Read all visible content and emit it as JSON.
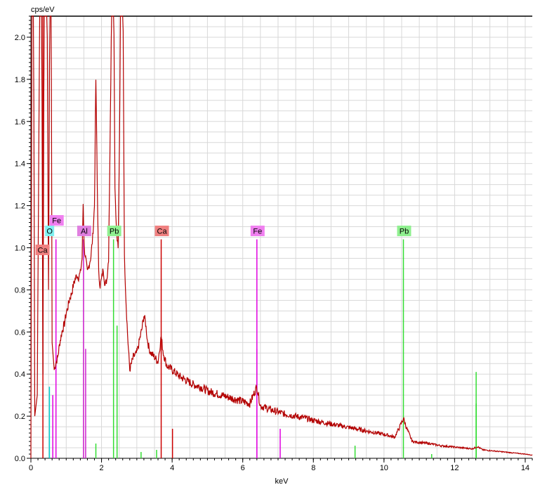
{
  "chart_data": {
    "type": "line",
    "title": "",
    "xlabel": "keV",
    "ylabel": "cps/eV",
    "xlim": [
      0,
      14.2
    ],
    "ylim": [
      0,
      2.1
    ],
    "x_ticks": [
      0,
      2,
      4,
      6,
      8,
      10,
      12,
      14
    ],
    "y_ticks": [
      0.0,
      0.2,
      0.4,
      0.6,
      0.8,
      1.0,
      1.2,
      1.4,
      1.6,
      1.8,
      2.0
    ],
    "x_tick_labels": [
      "0",
      "2",
      "4",
      "6",
      "8",
      "10",
      "12",
      "14"
    ],
    "y_tick_labels": [
      "0.0",
      "0.2",
      "0.4",
      "0.6",
      "0.8",
      "1.0",
      "1.2",
      "1.4",
      "1.6",
      "1.8",
      "2.0"
    ],
    "grid": true,
    "colors": {
      "spectrum": "#b30000",
      "Ca": "#cc0000",
      "O": "#00cccc",
      "Fe": "#e000e0",
      "Al": "#d020d0",
      "Pb": "#33dd33",
      "Ca_label_bg": "#f08080",
      "O_label_bg": "#80f0f0",
      "Fe_label_bg": "#f080f0",
      "Al_label_bg": "#e080e0",
      "Pb_label_bg": "#90f090"
    },
    "series": [
      {
        "name": "",
        "points": [
          [
            0.0,
            0
          ],
          [
            0.03,
            2.4
          ],
          [
            0.07,
            2.4
          ],
          [
            0.11,
            0.2
          ],
          [
            0.18,
            0.3
          ],
          [
            0.26,
            2.4
          ],
          [
            0.3,
            2.4
          ],
          [
            0.34,
            0.4
          ],
          [
            0.38,
            2.4
          ],
          [
            0.45,
            2.4
          ],
          [
            0.5,
            0.8
          ],
          [
            0.54,
            2.4
          ],
          [
            0.57,
            2.4
          ],
          [
            0.6,
            0.55
          ],
          [
            0.66,
            0.42
          ],
          [
            0.7,
            0.45
          ],
          [
            0.76,
            0.48
          ],
          [
            0.82,
            0.55
          ],
          [
            0.88,
            0.6
          ],
          [
            0.95,
            0.64
          ],
          [
            1.0,
            0.69
          ],
          [
            1.05,
            0.72
          ],
          [
            1.1,
            0.76
          ],
          [
            1.15,
            0.78
          ],
          [
            1.2,
            0.82
          ],
          [
            1.25,
            0.85
          ],
          [
            1.3,
            0.87
          ],
          [
            1.35,
            0.86
          ],
          [
            1.4,
            0.88
          ],
          [
            1.45,
            0.95
          ],
          [
            1.48,
            1.21
          ],
          [
            1.51,
            1.0
          ],
          [
            1.55,
            0.95
          ],
          [
            1.6,
            0.88
          ],
          [
            1.65,
            0.92
          ],
          [
            1.7,
            0.96
          ],
          [
            1.75,
            1.05
          ],
          [
            1.8,
            1.2
          ],
          [
            1.84,
            1.8
          ],
          [
            1.88,
            1.3
          ],
          [
            1.92,
            0.88
          ],
          [
            1.96,
            0.82
          ],
          [
            2.0,
            0.85
          ],
          [
            2.05,
            0.9
          ],
          [
            2.1,
            0.82
          ],
          [
            2.15,
            0.85
          ],
          [
            2.2,
            0.95
          ],
          [
            2.25,
            1.6
          ],
          [
            2.3,
            2.4
          ],
          [
            2.34,
            2.4
          ],
          [
            2.38,
            1.3
          ],
          [
            2.42,
            1.1
          ],
          [
            2.47,
            1.0
          ],
          [
            2.51,
            1.5
          ],
          [
            2.55,
            2.4
          ],
          [
            2.6,
            2.4
          ],
          [
            2.65,
            0.95
          ],
          [
            2.7,
            0.72
          ],
          [
            2.75,
            0.55
          ],
          [
            2.8,
            0.42
          ],
          [
            2.85,
            0.45
          ],
          [
            2.9,
            0.48
          ],
          [
            3.0,
            0.5
          ],
          [
            3.05,
            0.54
          ],
          [
            3.1,
            0.58
          ],
          [
            3.15,
            0.62
          ],
          [
            3.2,
            0.68
          ],
          [
            3.25,
            0.64
          ],
          [
            3.3,
            0.56
          ],
          [
            3.35,
            0.52
          ],
          [
            3.4,
            0.5
          ],
          [
            3.5,
            0.48
          ],
          [
            3.6,
            0.46
          ],
          [
            3.69,
            0.58
          ],
          [
            3.75,
            0.5
          ],
          [
            3.85,
            0.44
          ],
          [
            4.0,
            0.42
          ],
          [
            4.2,
            0.39
          ],
          [
            4.4,
            0.37
          ],
          [
            4.6,
            0.35
          ],
          [
            4.8,
            0.34
          ],
          [
            5.0,
            0.32
          ],
          [
            5.2,
            0.31
          ],
          [
            5.4,
            0.3
          ],
          [
            5.6,
            0.29
          ],
          [
            5.8,
            0.28
          ],
          [
            6.0,
            0.27
          ],
          [
            6.2,
            0.26
          ],
          [
            6.4,
            0.34
          ],
          [
            6.5,
            0.25
          ],
          [
            6.8,
            0.23
          ],
          [
            7.0,
            0.22
          ],
          [
            7.2,
            0.21
          ],
          [
            7.5,
            0.2
          ],
          [
            7.8,
            0.19
          ],
          [
            8.0,
            0.18
          ],
          [
            8.3,
            0.17
          ],
          [
            8.6,
            0.16
          ],
          [
            8.9,
            0.15
          ],
          [
            9.2,
            0.14
          ],
          [
            9.5,
            0.13
          ],
          [
            9.8,
            0.12
          ],
          [
            10.1,
            0.11
          ],
          [
            10.3,
            0.1
          ],
          [
            10.45,
            0.15
          ],
          [
            10.55,
            0.19
          ],
          [
            10.65,
            0.14
          ],
          [
            10.8,
            0.08
          ],
          [
            11.0,
            0.075
          ],
          [
            11.3,
            0.07
          ],
          [
            11.6,
            0.06
          ],
          [
            11.9,
            0.055
          ],
          [
            12.2,
            0.05
          ],
          [
            12.5,
            0.045
          ],
          [
            12.65,
            0.055
          ],
          [
            12.8,
            0.04
          ],
          [
            13.1,
            0.035
          ],
          [
            13.4,
            0.03
          ],
          [
            13.7,
            0.025
          ],
          [
            14.0,
            0.02
          ],
          [
            14.2,
            0.015
          ]
        ]
      }
    ],
    "element_lines": [
      {
        "element": "Ca",
        "x": 0.34,
        "height": 2.4
      },
      {
        "element": "Ca",
        "x": 3.69,
        "height": 1.04
      },
      {
        "element": "Ca",
        "x": 4.01,
        "height": 0.14
      },
      {
        "element": "O",
        "x": 0.525,
        "height": 0.34
      },
      {
        "element": "Fe",
        "x": 0.71,
        "height": 1.04
      },
      {
        "element": "Fe",
        "x": 0.62,
        "height": 0.3
      },
      {
        "element": "Fe",
        "x": 6.4,
        "height": 1.04
      },
      {
        "element": "Fe",
        "x": 6.4,
        "height": 0.52
      },
      {
        "element": "Fe",
        "x": 7.06,
        "height": 0.14
      },
      {
        "element": "Al",
        "x": 1.49,
        "height": 1.04
      },
      {
        "element": "Al",
        "x": 1.55,
        "height": 0.52
      },
      {
        "element": "Pb",
        "x": 2.34,
        "height": 1.04
      },
      {
        "element": "Pb",
        "x": 2.44,
        "height": 0.63
      },
      {
        "element": "Pb",
        "x": 1.84,
        "height": 0.07
      },
      {
        "element": "Pb",
        "x": 3.12,
        "height": 0.03
      },
      {
        "element": "Pb",
        "x": 3.56,
        "height": 0.04
      },
      {
        "element": "Pb",
        "x": 9.18,
        "height": 0.06
      },
      {
        "element": "Pb",
        "x": 10.55,
        "height": 1.04
      },
      {
        "element": "Pb",
        "x": 12.61,
        "height": 0.41
      },
      {
        "element": "Pb",
        "x": 12.61,
        "height": 0.26
      },
      {
        "element": "Pb",
        "x": 11.35,
        "height": 0.02
      }
    ],
    "element_labels": [
      {
        "text": "Ca",
        "element": "Ca",
        "x": 0.33,
        "y": 0.99
      },
      {
        "text": "O",
        "element": "O",
        "x": 0.53,
        "y": 1.08
      },
      {
        "text": "Fe",
        "element": "Fe",
        "x": 0.73,
        "y": 1.13
      },
      {
        "text": "Al",
        "element": "Al",
        "x": 1.51,
        "y": 1.08
      },
      {
        "text": "Pb",
        "element": "Pb",
        "x": 2.36,
        "y": 1.08
      },
      {
        "text": "Ca",
        "element": "Ca",
        "x": 3.71,
        "y": 1.08
      },
      {
        "text": "Fe",
        "element": "Fe",
        "x": 6.42,
        "y": 1.08
      },
      {
        "text": "Pb",
        "element": "Pb",
        "x": 10.57,
        "y": 1.08
      }
    ]
  }
}
